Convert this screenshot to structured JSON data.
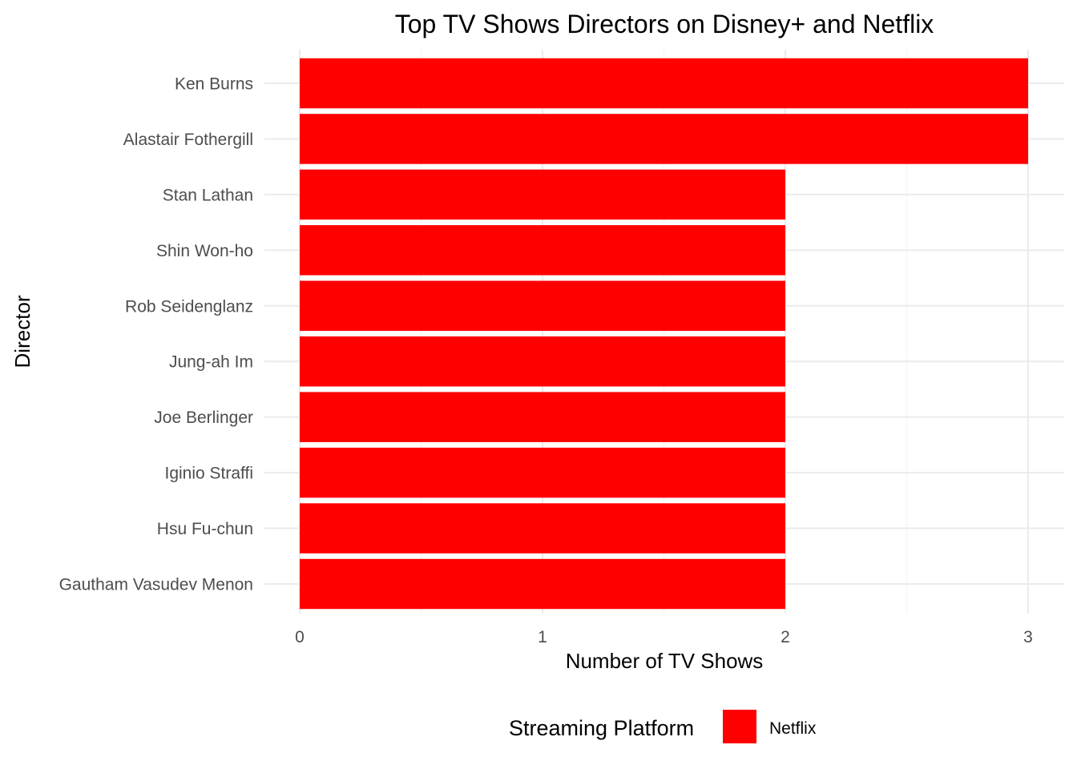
{
  "chart_data": {
    "type": "bar",
    "orientation": "horizontal",
    "title": "Top TV Shows Directors on Disney+ and Netflix",
    "xlabel": "Number of TV Shows",
    "ylabel": "Director",
    "categories": [
      "Ken Burns",
      "Alastair Fothergill",
      "Stan Lathan",
      "Shin Won-ho",
      "Rob Seidenglanz",
      "Jung-ah Im",
      "Joe Berlinger",
      "Iginio Straffi",
      "Hsu Fu-chun",
      "Gautham Vasudev Menon"
    ],
    "series": [
      {
        "name": "Netflix",
        "color": "#ff0000",
        "values": [
          3,
          3,
          2,
          2,
          2,
          2,
          2,
          2,
          2,
          2
        ]
      }
    ],
    "xlim": [
      0,
      3
    ],
    "xticks": [
      "0",
      "1",
      "2",
      "3"
    ],
    "grid": true,
    "legend": {
      "title": "Streaming Platform",
      "position": "bottom",
      "entries": [
        {
          "label": "Netflix",
          "color": "#ff0000"
        }
      ]
    }
  }
}
